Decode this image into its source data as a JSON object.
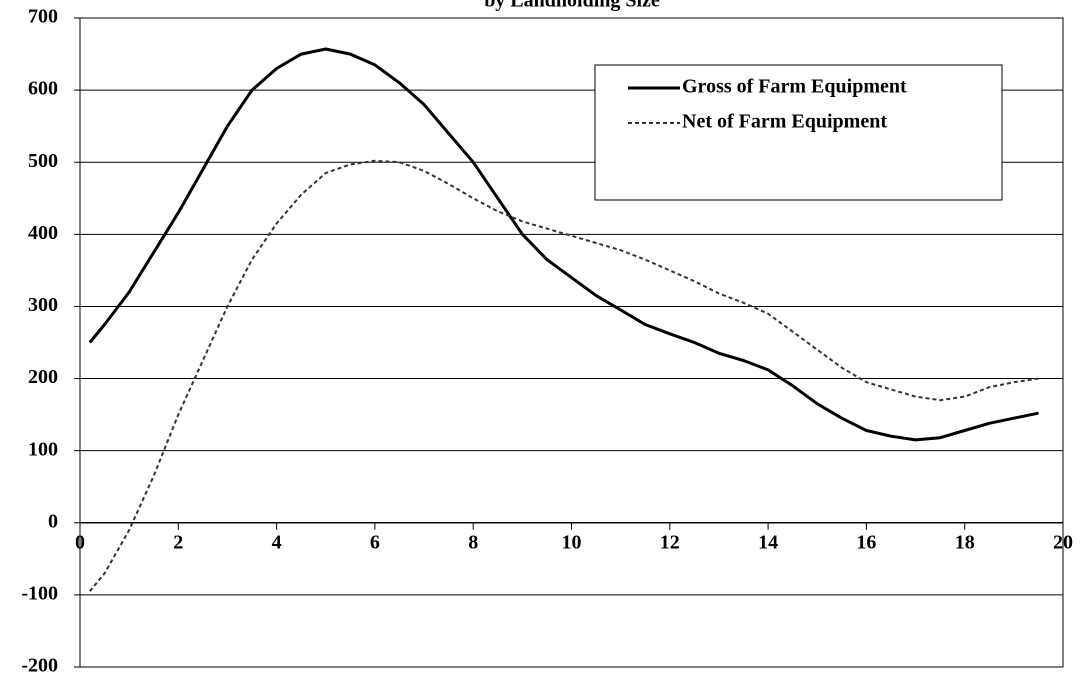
{
  "chart_data": {
    "type": "line",
    "title": "by Landholding Size",
    "x": [
      0.2,
      0.5,
      1,
      1.5,
      2,
      2.5,
      3,
      3.5,
      4,
      4.5,
      5,
      5.5,
      6,
      6.5,
      7,
      7.5,
      8,
      8.5,
      9,
      9.5,
      10,
      10.5,
      11,
      11.5,
      12,
      12.5,
      13,
      13.5,
      14,
      14.5,
      15,
      15.5,
      16,
      16.5,
      17,
      17.5,
      18,
      18.5,
      19,
      19.5
    ],
    "series": [
      {
        "name": "Gross of Farm Equipment",
        "color": "#000000",
        "line_style": "solid",
        "values": [
          250,
          275,
          320,
          375,
          430,
          490,
          550,
          600,
          630,
          650,
          657,
          650,
          635,
          610,
          580,
          540,
          500,
          450,
          400,
          365,
          340,
          315,
          295,
          275,
          262,
          250,
          235,
          225,
          212,
          190,
          165,
          145,
          128,
          120,
          115,
          118,
          128,
          138,
          145,
          152
        ]
      },
      {
        "name": "Net of Farm Equipment",
        "color": "#333333",
        "line_style": "dashed",
        "values": [
          -95,
          -70,
          -10,
          65,
          150,
          225,
          300,
          365,
          415,
          455,
          485,
          497,
          502,
          500,
          488,
          470,
          450,
          432,
          418,
          408,
          398,
          388,
          378,
          365,
          350,
          335,
          318,
          305,
          290,
          265,
          240,
          215,
          195,
          185,
          175,
          170,
          175,
          188,
          195,
          200
        ]
      }
    ],
    "xlim": [
      0,
      20
    ],
    "xticks": [
      0,
      2,
      4,
      6,
      8,
      10,
      12,
      14,
      16,
      18,
      20
    ],
    "ylim": [
      -200,
      700
    ],
    "yticks": [
      -200,
      -100,
      0,
      100,
      200,
      300,
      400,
      500,
      600,
      700
    ],
    "grid": true,
    "legend": "top-right"
  }
}
